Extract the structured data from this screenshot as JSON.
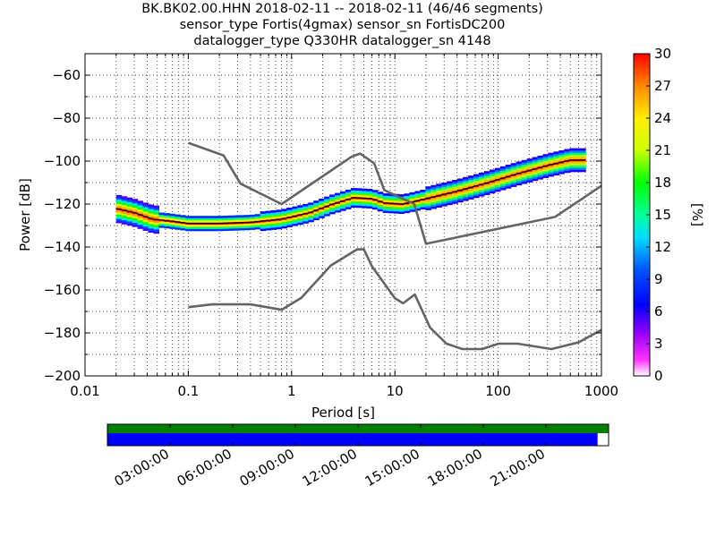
{
  "title": {
    "line1": "BK.BK02.00.HHN   2018-02-11 -- 2018-02-11  (46/46 segments)",
    "line2": "sensor_type Fortis(4gmax) sensor_sn FortisDC200",
    "line3": "datalogger_type Q330HR datalogger_sn 4148"
  },
  "chart_data": [
    {
      "type": "heatmap",
      "xlabel": "Period [s]",
      "ylabel": "Power [dB]",
      "xscale": "log",
      "xlim": [
        0.01,
        1000
      ],
      "ylim": [
        -200,
        -50
      ],
      "x_ticks": [
        "0.01",
        "0.1",
        "1",
        "10",
        "100",
        "1000"
      ],
      "y_ticks": [
        "−60",
        "−80",
        "−100",
        "−120",
        "−140",
        "−160",
        "−180",
        "−200"
      ],
      "grid": "dotted, major and minor",
      "colorbar": {
        "label": "[%]",
        "min": 0,
        "max": 30,
        "ticks": [
          "0",
          "3",
          "6",
          "9",
          "12",
          "15",
          "18",
          "21",
          "24",
          "27",
          "30"
        ]
      },
      "noise_model_curves": [
        {
          "id": "NHNM",
          "color": "#646464",
          "points": [
            [
              0.1,
              -91.5
            ],
            [
              0.22,
              -97.4
            ],
            [
              0.32,
              -110.5
            ],
            [
              0.8,
              -120
            ],
            [
              3.8,
              -98
            ],
            [
              4.6,
              -96.5
            ],
            [
              6.3,
              -101
            ],
            [
              7.9,
              -113.5
            ],
            [
              15.4,
              -120
            ],
            [
              20,
              -138.5
            ],
            [
              354.8,
              -126
            ],
            [
              1000,
              -111.5
            ]
          ]
        },
        {
          "id": "NLNM",
          "color": "#646464",
          "points": [
            [
              0.1,
              -168
            ],
            [
              0.17,
              -166.7
            ],
            [
              0.4,
              -166.7
            ],
            [
              0.8,
              -169.2
            ],
            [
              1.24,
              -163.7
            ],
            [
              2.4,
              -148.6
            ],
            [
              4.3,
              -141.1
            ],
            [
              5,
              -141
            ],
            [
              6,
              -149
            ],
            [
              10,
              -163.8
            ],
            [
              12,
              -166.2
            ],
            [
              15.6,
              -162.1
            ],
            [
              21.9,
              -177.5
            ],
            [
              31.6,
              -185
            ],
            [
              45,
              -187.5
            ],
            [
              70,
              -187.5
            ],
            [
              101,
              -185
            ],
            [
              154,
              -185
            ],
            [
              328,
              -187.5
            ],
            [
              600,
              -184.4
            ],
            [
              1000,
              -178.6
            ]
          ]
        }
      ],
      "mode_curve_color": "#000000",
      "mode_curve": [
        [
          0.02,
          -122
        ],
        [
          0.03,
          -124
        ],
        [
          0.045,
          -127
        ],
        [
          0.07,
          -128
        ],
        [
          0.1,
          -129
        ],
        [
          0.2,
          -129
        ],
        [
          0.4,
          -128.5
        ],
        [
          0.8,
          -127
        ],
        [
          1.5,
          -124
        ],
        [
          2.5,
          -120
        ],
        [
          4,
          -117
        ],
        [
          6,
          -117.5
        ],
        [
          8,
          -119.5
        ],
        [
          12,
          -120
        ],
        [
          20,
          -117.5
        ],
        [
          40,
          -114
        ],
        [
          80,
          -110
        ],
        [
          150,
          -106
        ],
        [
          300,
          -102
        ],
        [
          500,
          -99.5
        ],
        [
          700,
          -99.5
        ]
      ]
    },
    {
      "type": "timeline",
      "x_ticks": [
        "03:00:00",
        "06:00:00",
        "09:00:00",
        "12:00:00",
        "15:00:00",
        "18:00:00",
        "21:00:00"
      ],
      "rows": [
        {
          "id": "data-availability",
          "color": "#008000",
          "coverage": [
            0.0,
            1.0
          ]
        },
        {
          "id": "psd-segments",
          "color": "#0000ff",
          "coverage": [
            0.0,
            0.978
          ]
        }
      ]
    }
  ]
}
